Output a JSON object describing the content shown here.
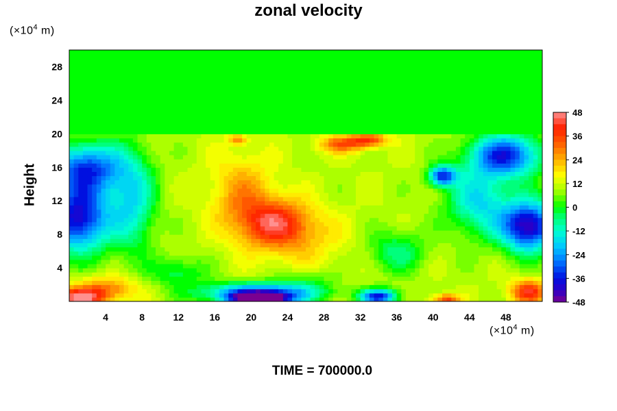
{
  "chart_data": {
    "type": "heatmap",
    "title": "zonal velocity",
    "ylabel": "Height",
    "xlabel": "",
    "x_unit": {
      "prefix": "(×10",
      "exp": "4",
      "suffix": " m)"
    },
    "y_unit": {
      "prefix": "(×10",
      "exp": "4",
      "suffix": " m)"
    },
    "xlim": [
      0,
      52
    ],
    "ylim": [
      0,
      30
    ],
    "x_ticks": [
      4,
      8,
      12,
      16,
      20,
      24,
      28,
      32,
      36,
      40,
      44,
      48
    ],
    "y_ticks": [
      4,
      8,
      12,
      16,
      20,
      24,
      28
    ],
    "colorbar": {
      "min": -48,
      "max": 48,
      "tick_labels": [
        "48",
        "36",
        "24",
        "12",
        "0",
        "-12",
        "-24",
        "-36",
        "-48"
      ],
      "colors": [
        {
          "value": -48,
          "color": "#7a0090"
        },
        {
          "value": -42,
          "color": "#2a00c8"
        },
        {
          "value": -36,
          "color": "#0010e0"
        },
        {
          "value": -28,
          "color": "#0070ff"
        },
        {
          "value": -20,
          "color": "#00c8ff"
        },
        {
          "value": -12,
          "color": "#00ffd0"
        },
        {
          "value": -4,
          "color": "#00ff60"
        },
        {
          "value": 0,
          "color": "#00ff00"
        },
        {
          "value": 8,
          "color": "#a0ff00"
        },
        {
          "value": 16,
          "color": "#ffff00"
        },
        {
          "value": 24,
          "color": "#ffb000"
        },
        {
          "value": 32,
          "color": "#ff6000"
        },
        {
          "value": 40,
          "color": "#ff2000"
        },
        {
          "value": 48,
          "color": "#ff9090"
        }
      ]
    },
    "grid": false,
    "field_features": [
      {
        "x": 22.5,
        "y": 9.5,
        "value": 36,
        "sx": 4.0,
        "sy": 2.8
      },
      {
        "x": 19,
        "y": 13,
        "value": 25,
        "sx": 3.5,
        "sy": 4.5
      },
      {
        "x": 25,
        "y": 7.5,
        "value": 20,
        "sx": 5.0,
        "sy": 3.5
      },
      {
        "x": 30,
        "y": 18.8,
        "value": 32,
        "sx": 2.6,
        "sy": 1.0
      },
      {
        "x": 33,
        "y": 19.3,
        "value": 36,
        "sx": 2.0,
        "sy": 0.8
      },
      {
        "x": 18.5,
        "y": 19.3,
        "value": 28,
        "sx": 1.0,
        "sy": 0.6
      },
      {
        "x": 1,
        "y": 10,
        "value": -40,
        "sx": 3.5,
        "sy": 4.0
      },
      {
        "x": 2,
        "y": 16,
        "value": -30,
        "sx": 4.0,
        "sy": 3.0
      },
      {
        "x": 7,
        "y": 12,
        "value": -14,
        "sx": 2.5,
        "sy": 6.0
      },
      {
        "x": 50.5,
        "y": 9,
        "value": -44,
        "sx": 3.0,
        "sy": 3.0
      },
      {
        "x": 48,
        "y": 17.5,
        "value": -34,
        "sx": 4.0,
        "sy": 2.6
      },
      {
        "x": 41,
        "y": 15,
        "value": -32,
        "sx": 1.5,
        "sy": 1.2
      },
      {
        "x": 45,
        "y": 12,
        "value": -16,
        "sx": 3.5,
        "sy": 4.0
      },
      {
        "x": 21,
        "y": 0.3,
        "value": -50,
        "sx": 3.0,
        "sy": 0.7
      },
      {
        "x": 21,
        "y": 1.0,
        "value": -36,
        "sx": 6.0,
        "sy": 1.2
      },
      {
        "x": 34,
        "y": 0.6,
        "value": -36,
        "sx": 2.0,
        "sy": 0.9
      },
      {
        "x": 1,
        "y": 0.5,
        "value": 46,
        "sx": 2.5,
        "sy": 1.0
      },
      {
        "x": 4,
        "y": 1.5,
        "value": 30,
        "sx": 3.5,
        "sy": 1.5
      },
      {
        "x": 50.5,
        "y": 1.2,
        "value": 40,
        "sx": 2.0,
        "sy": 1.4
      },
      {
        "x": 41.5,
        "y": 0.3,
        "value": 36,
        "sx": 1.5,
        "sy": 0.6
      },
      {
        "x": 12,
        "y": 3.5,
        "value": -4,
        "sx": 3.0,
        "sy": 1.8
      },
      {
        "x": 36,
        "y": 6.0,
        "value": -6,
        "sx": 3.0,
        "sy": 2.5
      },
      {
        "x": 26,
        "y": 2.5,
        "value": 2,
        "sx": 3.0,
        "sy": 1.5
      }
    ],
    "field_background": 10
  },
  "footer": {
    "time_label": "TIME = 700000.0"
  }
}
